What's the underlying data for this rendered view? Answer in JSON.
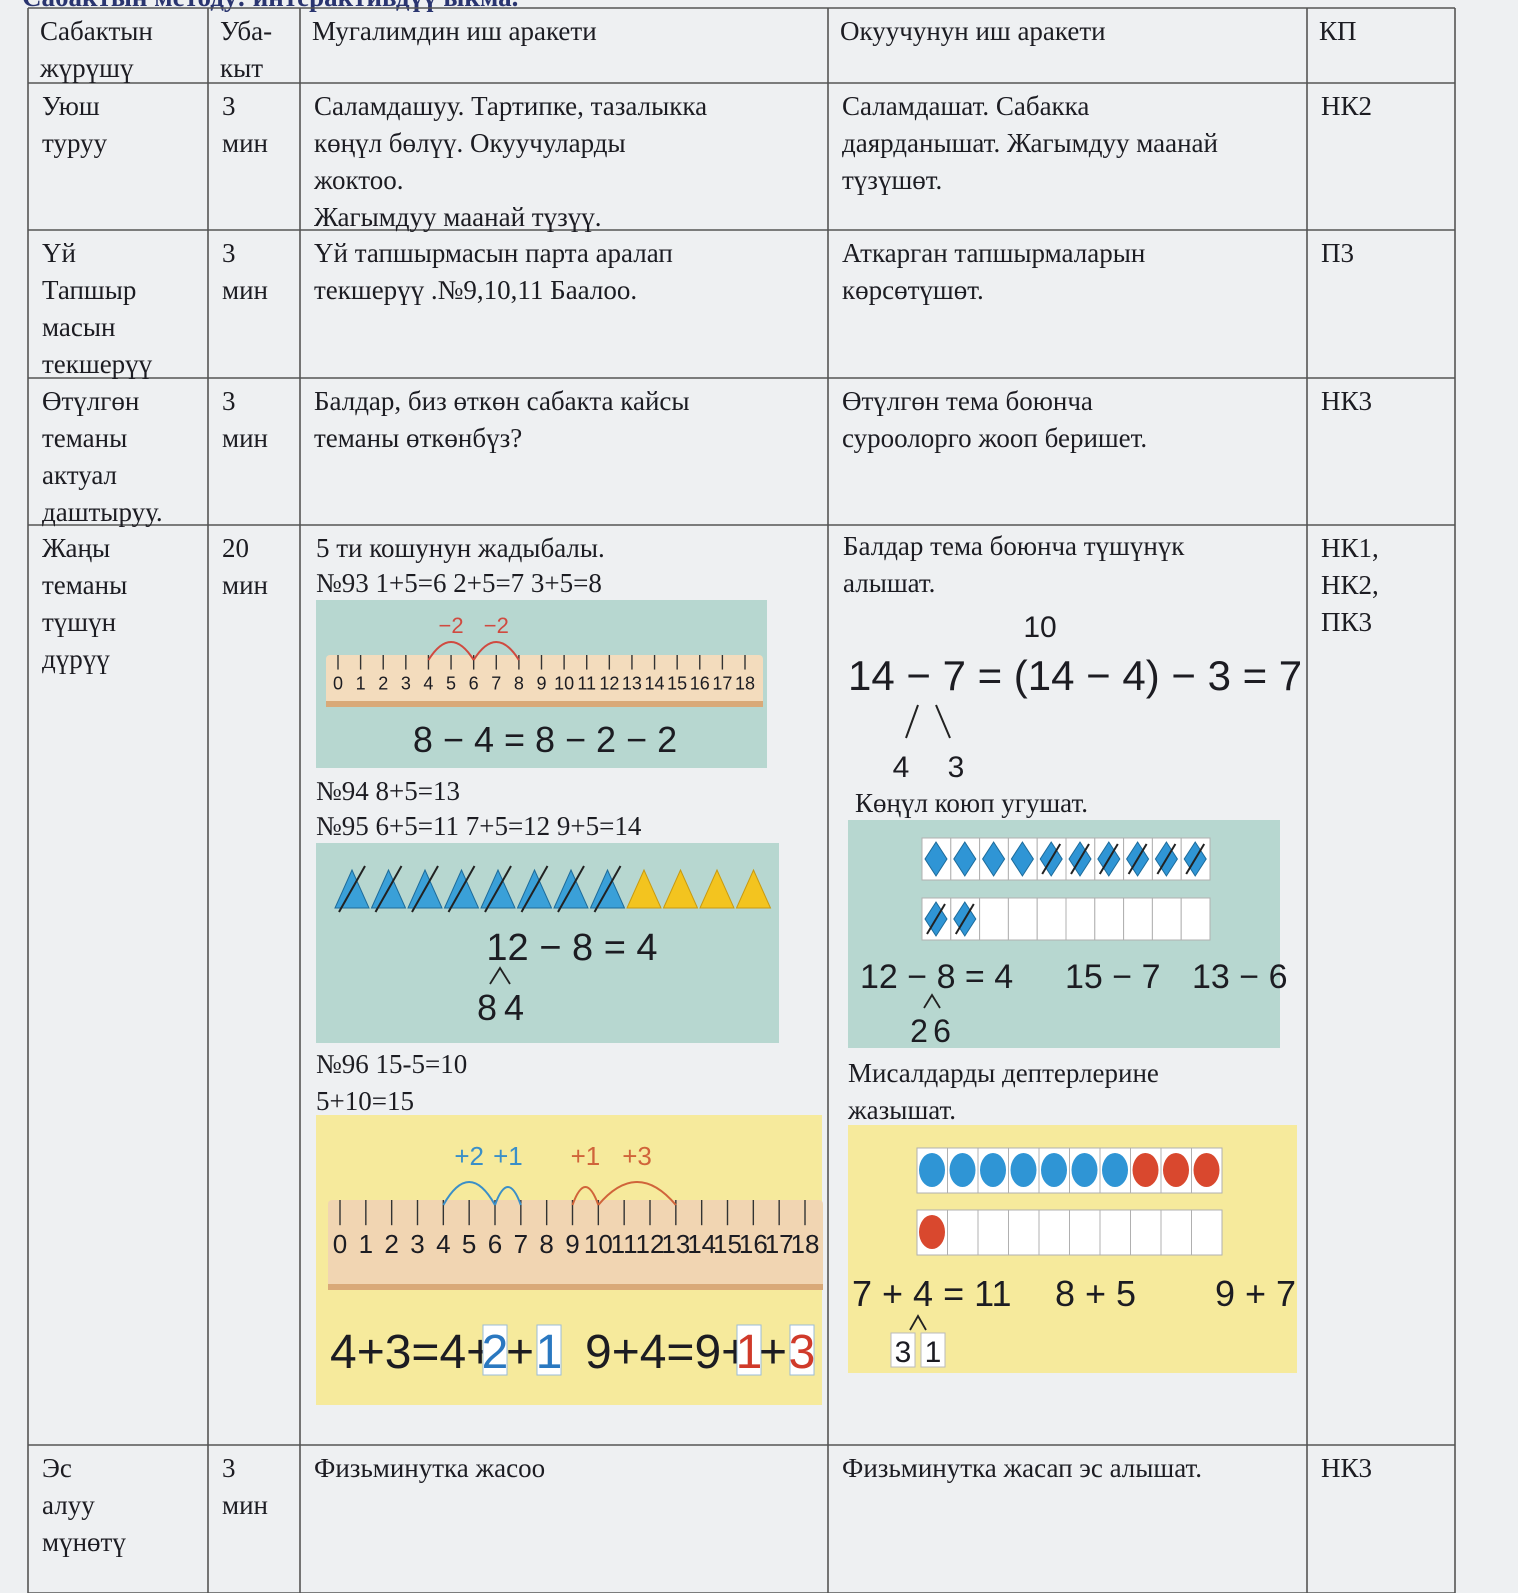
{
  "header": {
    "title": "Сабактын методу: интерактивдүү ыкма."
  },
  "table": {
    "columns": [
      [
        "Сабактын",
        "жүрүшү"
      ],
      [
        "Уба-",
        "кыт"
      ],
      [
        "Мугалимдин  иш  аракети"
      ],
      [
        "Окуучунун  иш аракети"
      ],
      [
        "КП"
      ]
    ],
    "rows": [
      [
        [
          "Уюш",
          "туруу"
        ],
        [
          "3",
          "мин"
        ],
        [
          "Саламдашуу. Тартипке, тазалыкка",
          "көңүл бөлүү.  Окуучуларды",
          "жоктоо.",
          "Жагымдуу  маанай түзүү."
        ],
        [
          "Саламдашат. Сабакка",
          "даярданышат. Жагымдуу  маанай",
          "түзүшөт."
        ],
        [
          "НК2"
        ]
      ],
      [
        [
          "Үй",
          "Тапшыр",
          "масын",
          " текшерүү"
        ],
        [
          "3",
          "мин"
        ],
        [
          "Үй  тапшырмасын  парта  аралап",
          "текшерүү .№9,10,11 Баалоо."
        ],
        [
          "Аткарган  тапшырмаларын",
          "көрсөтүшөт."
        ],
        [
          "П3"
        ]
      ],
      [
        [
          "Өтүлгөн",
          "теманы",
          "актуал",
          "даштыруу."
        ],
        [
          "3",
          "мин"
        ],
        [
          "Балдар,  биз  өткөн сабакта  кайсы",
          "теманы  өткөнбүз?"
        ],
        [
          "Өтүлгөн  тема  боюнча",
          "суроолорго  жооп  беришет."
        ],
        [
          "НК3"
        ]
      ],
      [
        [
          "Жаңы",
          "теманы",
          "түшүн",
          "дүрүү"
        ],
        [
          "20",
          "мин"
        ],
        null,
        null,
        [
          "НК1,",
          "НК2,",
          "ПК3"
        ]
      ],
      [
        [
          "Эс",
          "алуу",
          "мүнөтү"
        ],
        [
          "3",
          "мин"
        ],
        [
          "Физьминутка  жасоо"
        ],
        [
          "Физьминутка  жасап  эс  алышат."
        ],
        [
          "НК3"
        ]
      ]
    ]
  },
  "new_topic": {
    "teacher": {
      "intro": [
        "5 ти кошунун жадыбалы.",
        "№93     1+5=6     2+5=7     3+5=8"
      ],
      "figure_1": {
        "jumps": [
          "−2",
          "−2"
        ],
        "ruler": [
          0,
          1,
          2,
          3,
          4,
          5,
          6,
          7,
          8,
          9,
          10,
          11,
          12,
          13,
          14,
          15,
          16,
          17,
          18
        ],
        "equation": "8 − 4 = 8 − 2 − 2"
      },
      "middle": [
        "№94     8+5=13",
        "№95     6+5=11     7+5=12     9+5=14"
      ],
      "figure_2": {
        "equation": "12 − 8 = 4",
        "split": [
          "8",
          "4"
        ]
      },
      "outro": [
        "№96     15-5=10",
        "5+10=15"
      ],
      "figure_3": {
        "jumps": [
          "+2",
          "+1",
          "+1",
          "+3"
        ],
        "ruler": [
          0,
          1,
          2,
          3,
          4,
          5,
          6,
          7,
          8,
          9,
          10,
          11,
          12,
          13,
          14,
          15,
          16,
          17,
          18
        ],
        "equations": [
          {
            "start": "4+3=4+",
            "first": "2",
            "plus": "+",
            "second": "1"
          },
          {
            "start": "9+4=9+",
            "first": "1",
            "plus": "+",
            "second": "3"
          }
        ]
      }
    },
    "student": {
      "intro": [
        "Балдар  тема  боюнча  түшүнүк",
        "алышат."
      ],
      "math": {
        "top": "10",
        "equation": "14 − 7 = (14 − 4) − 3 = 7",
        "split": [
          "4",
          "3"
        ]
      },
      "listen": "Көңүл  коюп  угушат.",
      "figure_4": {
        "equations": [
          "12 − 8 = 4",
          "15 − 7",
          "13 − 6"
        ],
        "split": [
          "2",
          "6"
        ]
      },
      "write": [
        "Мисалдарды дептерлерине",
        "жазышат."
      ],
      "figure_5": {
        "equations": [
          "7 + 4 = 11",
          "8 + 5",
          "9 + 7"
        ],
        "split": [
          "3",
          "1"
        ]
      }
    }
  }
}
